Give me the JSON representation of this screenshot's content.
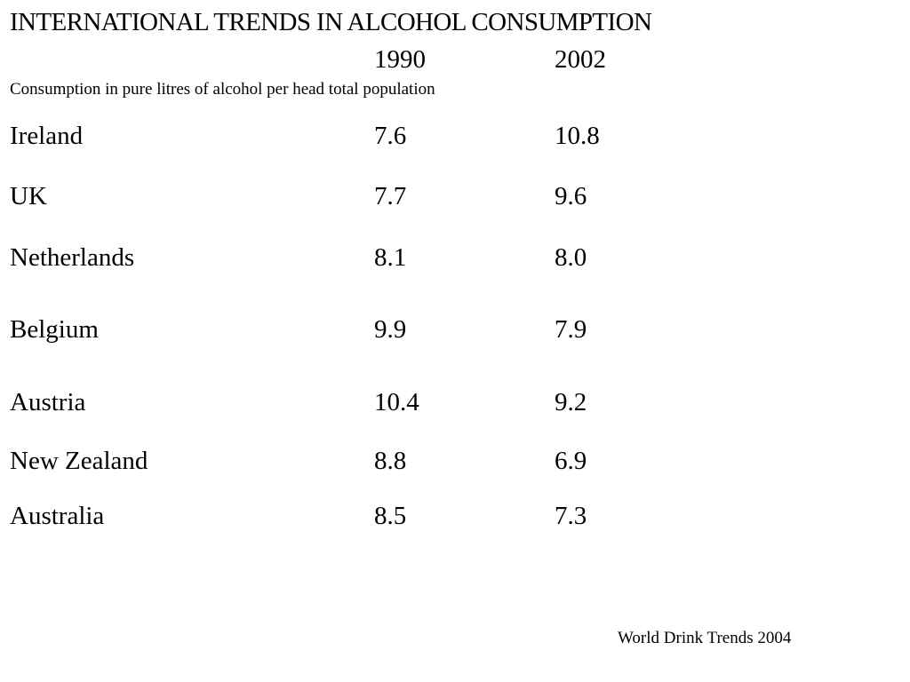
{
  "title": "INTERNATIONAL TRENDS IN  ALCOHOL CONSUMPTION",
  "years": [
    "1990",
    "2002"
  ],
  "subtitle": "Consumption in pure litres of alcohol per head total population",
  "rows": [
    {
      "country": "Ireland",
      "v1990": "7.6",
      "v2002": "10.8"
    },
    {
      "country": "UK",
      "v1990": "7.7",
      "v2002": "9.6"
    },
    {
      "country": "Netherlands",
      "v1990": "8.1",
      "v2002": "8.0"
    },
    {
      "country": "Belgium",
      "v1990": "9.9",
      "v2002": "7.9"
    },
    {
      "country": "Austria",
      "v1990": "10.4",
      "v2002": "9.2"
    },
    {
      "country": "New Zealand",
      "v1990": "8.8",
      "v2002": "6.9"
    },
    {
      "country": "Australia",
      "v1990": "8.5",
      "v2002": "7.3"
    }
  ],
  "source": "World Drink Trends 2004"
}
